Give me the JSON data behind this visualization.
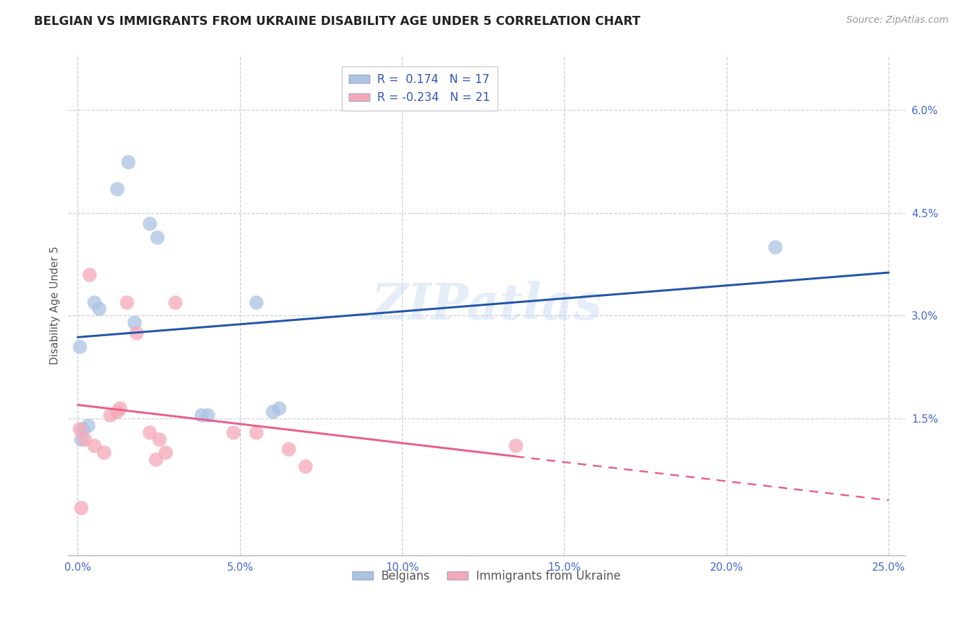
{
  "title": "BELGIAN VS IMMIGRANTS FROM UKRAINE DISABILITY AGE UNDER 5 CORRELATION CHART",
  "source": "Source: ZipAtlas.com",
  "ylabel": "Disability Age Under 5",
  "xlabel_ticks": [
    "0.0%",
    "5.0%",
    "10.0%",
    "15.0%",
    "20.0%",
    "25.0%"
  ],
  "xlabel_vals": [
    0.0,
    5.0,
    10.0,
    15.0,
    20.0,
    25.0
  ],
  "ylabel_ticks": [
    "1.5%",
    "3.0%",
    "4.5%",
    "6.0%"
  ],
  "ylabel_vals": [
    1.5,
    3.0,
    4.5,
    6.0
  ],
  "xlim": [
    -0.3,
    25.5
  ],
  "ylim": [
    -0.5,
    6.8
  ],
  "belgian_x": [
    0.05,
    1.2,
    1.55,
    2.2,
    2.45,
    0.5,
    0.65,
    1.75,
    5.5,
    6.0,
    6.2,
    0.3,
    0.15,
    0.1,
    3.8,
    4.0,
    21.5
  ],
  "belgian_y": [
    2.55,
    4.85,
    5.25,
    4.35,
    4.15,
    3.2,
    3.1,
    2.9,
    3.2,
    1.6,
    1.65,
    1.4,
    1.35,
    1.2,
    1.55,
    1.55,
    4.0
  ],
  "ukraine_x": [
    0.05,
    0.2,
    0.5,
    0.8,
    1.0,
    1.2,
    1.3,
    1.5,
    1.8,
    2.2,
    2.4,
    2.5,
    2.7,
    3.0,
    4.8,
    5.5,
    6.5,
    7.0,
    13.5,
    0.35,
    0.1
  ],
  "ukraine_y": [
    1.35,
    1.2,
    1.1,
    1.0,
    1.55,
    1.6,
    1.65,
    3.2,
    2.75,
    1.3,
    0.9,
    1.2,
    1.0,
    3.2,
    1.3,
    1.3,
    1.05,
    0.8,
    1.1,
    3.6,
    0.2
  ],
  "belgian_R": 0.174,
  "belgian_N": 17,
  "ukraine_R": -0.234,
  "ukraine_N": 21,
  "belgian_color": "#aac4e2",
  "ukraine_color": "#f5a8b8",
  "belgian_line_color": "#2255aa",
  "ukraine_line_color": "#e8608a",
  "watermark": "ZIPatlas",
  "title_fontsize": 12.5,
  "label_fontsize": 11,
  "tick_fontsize": 11,
  "legend_fontsize": 12,
  "source_fontsize": 10,
  "ukraine_solid_end_x": 13.5
}
